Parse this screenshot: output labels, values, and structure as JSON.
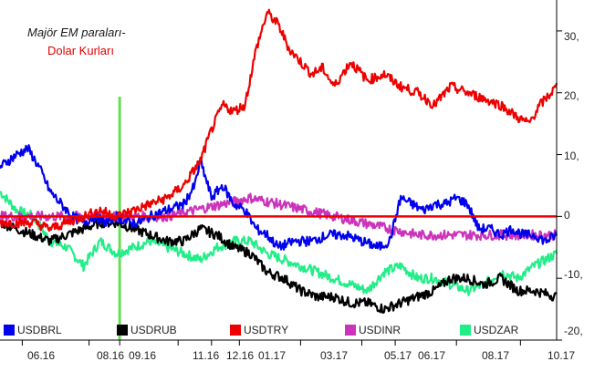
{
  "title_line1": "Majör EM paraları-",
  "title_line2": "Dolar Kurları",
  "chart_data": {
    "type": "line",
    "x_ticks": [
      "06.16",
      "08.16",
      "09.16",
      "11.16",
      "12.16",
      "01.17",
      "03.17",
      "05.17",
      "06.17",
      "08.17",
      "10.17"
    ],
    "y_ticks": [
      30,
      20,
      10,
      0,
      -10,
      -20
    ],
    "y_tick_labels": [
      "30,",
      "20,",
      "10,",
      "0",
      "-10,",
      "-20,"
    ],
    "ylim": [
      -20,
      35
    ],
    "zero_line": 0,
    "vertical_marker_x": 0.215,
    "series": [
      {
        "name": "USDBRL",
        "color": "#0000ee",
        "x": [
          0,
          0.03,
          0.05,
          0.07,
          0.09,
          0.11,
          0.13,
          0.15,
          0.17,
          0.19,
          0.21,
          0.23,
          0.25,
          0.27,
          0.3,
          0.33,
          0.35,
          0.36,
          0.38,
          0.4,
          0.42,
          0.44,
          0.46,
          0.48,
          0.5,
          0.53,
          0.56,
          0.59,
          0.62,
          0.65,
          0.68,
          0.7,
          0.72,
          0.74,
          0.76,
          0.78,
          0.8,
          0.82,
          0.84,
          0.86,
          0.88,
          0.9,
          0.92,
          0.94,
          0.96,
          0.98,
          1
        ],
        "values": [
          8,
          10,
          11,
          8,
          4,
          2,
          0,
          -1,
          0,
          -1,
          0,
          -1,
          -1,
          0,
          1,
          2,
          5,
          9,
          3,
          5,
          2,
          1,
          -2,
          -3,
          -5,
          -4,
          -4,
          -3,
          -3,
          -4,
          -5,
          -4,
          3,
          2,
          1,
          2,
          2,
          3,
          2,
          -2,
          -2,
          -3,
          -2,
          -3,
          -3,
          -4,
          -3
        ]
      },
      {
        "name": "USDRUB",
        "color": "#000000",
        "x": [
          0,
          0.03,
          0.06,
          0.09,
          0.12,
          0.15,
          0.18,
          0.21,
          0.24,
          0.27,
          0.3,
          0.33,
          0.36,
          0.39,
          0.42,
          0.45,
          0.48,
          0.51,
          0.54,
          0.57,
          0.6,
          0.63,
          0.66,
          0.69,
          0.72,
          0.75,
          0.78,
          0.81,
          0.84,
          0.87,
          0.9,
          0.93,
          0.96,
          1
        ],
        "values": [
          -1,
          -2,
          -3,
          -4,
          -3,
          -2,
          -1,
          -1,
          -2,
          -3,
          -4,
          -4,
          -2,
          -3,
          -5,
          -6,
          -9,
          -10,
          -12,
          -13,
          -13,
          -14,
          -14,
          -15,
          -14,
          -13,
          -12,
          -10,
          -10,
          -11,
          -10,
          -12,
          -12,
          -13
        ]
      },
      {
        "name": "USDTRY",
        "color": "#ee0000",
        "x": [
          0,
          0.03,
          0.06,
          0.09,
          0.12,
          0.15,
          0.18,
          0.21,
          0.24,
          0.27,
          0.3,
          0.33,
          0.36,
          0.38,
          0.4,
          0.42,
          0.44,
          0.46,
          0.48,
          0.5,
          0.52,
          0.54,
          0.56,
          0.58,
          0.6,
          0.63,
          0.66,
          0.69,
          0.72,
          0.75,
          0.78,
          0.81,
          0.84,
          0.87,
          0.9,
          0.93,
          0.95,
          0.97,
          1
        ],
        "values": [
          -1,
          -1,
          -1,
          -2,
          -1,
          0,
          1,
          0,
          1,
          2,
          3,
          5,
          9,
          14,
          18,
          17,
          18,
          27,
          33,
          31,
          27,
          25,
          23,
          24,
          21,
          25,
          22,
          23,
          21,
          20,
          18,
          21,
          20,
          19,
          18,
          16,
          15,
          18,
          21
        ]
      },
      {
        "name": "USDINR",
        "color": "#cc33bb",
        "x": [
          0,
          0.05,
          0.1,
          0.15,
          0.2,
          0.25,
          0.3,
          0.35,
          0.4,
          0.45,
          0.5,
          0.55,
          0.6,
          0.65,
          0.7,
          0.75,
          0.8,
          0.85,
          0.9,
          0.95,
          1
        ],
        "values": [
          0,
          0,
          0,
          0,
          0,
          0,
          0,
          1,
          2,
          3,
          2,
          1,
          0,
          -1,
          -2,
          -3,
          -3,
          -3,
          -3,
          -3,
          -3
        ]
      },
      {
        "name": "USDZAR",
        "color": "#22ee88",
        "x": [
          0,
          0.03,
          0.06,
          0.09,
          0.12,
          0.15,
          0.18,
          0.21,
          0.24,
          0.27,
          0.3,
          0.33,
          0.36,
          0.39,
          0.42,
          0.45,
          0.48,
          0.51,
          0.54,
          0.57,
          0.6,
          0.63,
          0.66,
          0.69,
          0.72,
          0.75,
          0.78,
          0.81,
          0.84,
          0.87,
          0.9,
          0.93,
          0.96,
          1
        ],
        "values": [
          4,
          1,
          0,
          -4,
          -5,
          -8,
          -4,
          -6,
          -5,
          -4,
          -5,
          -6,
          -7,
          -5,
          -4,
          -4,
          -6,
          -7,
          -8,
          -9,
          -10,
          -11,
          -12,
          -9,
          -8,
          -10,
          -10,
          -11,
          -12,
          -11,
          -9,
          -10,
          -8,
          -6
        ]
      }
    ]
  }
}
